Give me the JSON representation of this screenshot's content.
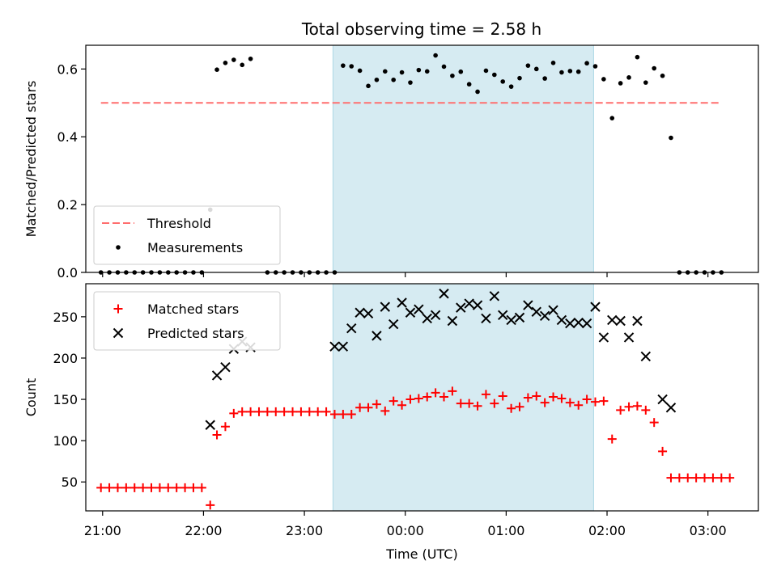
{
  "chart_data": [
    {
      "type": "scatter",
      "title": "Total observing time = 2.58 h",
      "xlabel": "",
      "ylabel": "Matched/Predicted stars",
      "xlim": [
        "20:50",
        "03:30"
      ],
      "ylim": [
        0,
        0.67
      ],
      "yticks": [
        "0.0",
        "0.2",
        "0.4",
        "0.6"
      ],
      "ytick_values": [
        0,
        0.2,
        0.4,
        0.6
      ],
      "shaded_span": [
        "23:17",
        "01:52"
      ],
      "legend_position": "lower-left",
      "threshold": {
        "name": "Threshold",
        "y": 0.5,
        "x_range": [
          "20:59",
          "03:08"
        ],
        "color": "#ff6e6e",
        "style": "dashed"
      },
      "series": [
        {
          "name": "Measurements",
          "color": "#000000",
          "marker": "dot",
          "points": [
            [
              "20:59",
              0
            ],
            [
              "21:04",
              0
            ],
            [
              "21:09",
              0
            ],
            [
              "21:14",
              0
            ],
            [
              "21:19",
              0
            ],
            [
              "21:24",
              0
            ],
            [
              "21:29",
              0
            ],
            [
              "21:34",
              0
            ],
            [
              "21:39",
              0
            ],
            [
              "21:44",
              0
            ],
            [
              "21:49",
              0
            ],
            [
              "21:54",
              0
            ],
            [
              "21:59",
              0
            ],
            [
              "22:04",
              0.185
            ],
            [
              "22:08",
              0.598
            ],
            [
              "22:13",
              0.618
            ],
            [
              "22:18",
              0.627
            ],
            [
              "22:23",
              0.612
            ],
            [
              "22:28",
              0.63
            ],
            [
              "22:38",
              0
            ],
            [
              "22:43",
              0
            ],
            [
              "22:48",
              0
            ],
            [
              "22:53",
              0
            ],
            [
              "22:58",
              0
            ],
            [
              "23:03",
              0
            ],
            [
              "23:08",
              0
            ],
            [
              "23:13",
              0
            ],
            [
              "23:18",
              0
            ],
            [
              "23:23",
              0.61
            ],
            [
              "23:28",
              0.608
            ],
            [
              "23:33",
              0.595
            ],
            [
              "23:38",
              0.55
            ],
            [
              "23:43",
              0.568
            ],
            [
              "23:48",
              0.593
            ],
            [
              "23:53",
              0.568
            ],
            [
              "23:58",
              0.59
            ],
            [
              "00:03",
              0.56
            ],
            [
              "00:08",
              0.597
            ],
            [
              "00:13",
              0.593
            ],
            [
              "00:18",
              0.64
            ],
            [
              "00:23",
              0.607
            ],
            [
              "00:28",
              0.58
            ],
            [
              "00:33",
              0.592
            ],
            [
              "00:38",
              0.555
            ],
            [
              "00:43",
              0.533
            ],
            [
              "00:48",
              0.595
            ],
            [
              "00:53",
              0.583
            ],
            [
              "00:58",
              0.563
            ],
            [
              "01:03",
              0.548
            ],
            [
              "01:08",
              0.573
            ],
            [
              "01:13",
              0.61
            ],
            [
              "01:18",
              0.6
            ],
            [
              "01:23",
              0.572
            ],
            [
              "01:28",
              0.618
            ],
            [
              "01:33",
              0.59
            ],
            [
              "01:38",
              0.594
            ],
            [
              "01:43",
              0.592
            ],
            [
              "01:48",
              0.617
            ],
            [
              "01:53",
              0.608
            ],
            [
              "01:58",
              0.57
            ],
            [
              "02:03",
              0.455
            ],
            [
              "02:08",
              0.558
            ],
            [
              "02:13",
              0.575
            ],
            [
              "02:18",
              0.635
            ],
            [
              "02:23",
              0.56
            ],
            [
              "02:28",
              0.602
            ],
            [
              "02:33",
              0.58
            ],
            [
              "02:38",
              0.397
            ],
            [
              "02:43",
              0
            ],
            [
              "02:48",
              0
            ],
            [
              "02:53",
              0
            ],
            [
              "02:58",
              0
            ],
            [
              "03:03",
              0
            ],
            [
              "03:08",
              0
            ]
          ]
        }
      ]
    },
    {
      "type": "scatter",
      "title": "",
      "xlabel": "Time (UTC)",
      "ylabel": "Count",
      "xlim": [
        "20:50",
        "03:30"
      ],
      "ylim": [
        15,
        290
      ],
      "yticks": [
        "50",
        "100",
        "150",
        "200",
        "250"
      ],
      "ytick_values": [
        50,
        100,
        150,
        200,
        250
      ],
      "xticks": [
        "21:00",
        "22:00",
        "23:00",
        "00:00",
        "01:00",
        "02:00",
        "03:00"
      ],
      "shaded_span": [
        "23:17",
        "01:52"
      ],
      "legend_position": "upper-left",
      "series": [
        {
          "name": "Matched stars",
          "color": "#ff0000",
          "marker": "plus",
          "points": [
            [
              "20:59",
              43
            ],
            [
              "21:04",
              43
            ],
            [
              "21:09",
              43
            ],
            [
              "21:14",
              43
            ],
            [
              "21:19",
              43
            ],
            [
              "21:24",
              43
            ],
            [
              "21:29",
              43
            ],
            [
              "21:34",
              43
            ],
            [
              "21:39",
              43
            ],
            [
              "21:44",
              43
            ],
            [
              "21:49",
              43
            ],
            [
              "21:54",
              43
            ],
            [
              "21:59",
              43
            ],
            [
              "22:04",
              22
            ],
            [
              "22:08",
              107
            ],
            [
              "22:13",
              117
            ],
            [
              "22:18",
              133
            ],
            [
              "22:23",
              135
            ],
            [
              "22:28",
              135
            ],
            [
              "22:33",
              135
            ],
            [
              "22:38",
              135
            ],
            [
              "22:43",
              135
            ],
            [
              "22:48",
              135
            ],
            [
              "22:53",
              135
            ],
            [
              "22:58",
              135
            ],
            [
              "23:03",
              135
            ],
            [
              "23:08",
              135
            ],
            [
              "23:13",
              135
            ],
            [
              "23:18",
              132
            ],
            [
              "23:23",
              132
            ],
            [
              "23:28",
              132
            ],
            [
              "23:33",
              140
            ],
            [
              "23:38",
              140
            ],
            [
              "23:43",
              144
            ],
            [
              "23:48",
              136
            ],
            [
              "23:53",
              148
            ],
            [
              "23:58",
              143
            ],
            [
              "00:03",
              150
            ],
            [
              "00:08",
              151
            ],
            [
              "00:13",
              153
            ],
            [
              "00:18",
              158
            ],
            [
              "00:23",
              153
            ],
            [
              "00:28",
              160
            ],
            [
              "00:33",
              145
            ],
            [
              "00:38",
              145
            ],
            [
              "00:43",
              142
            ],
            [
              "00:48",
              156
            ],
            [
              "00:53",
              145
            ],
            [
              "00:58",
              154
            ],
            [
              "01:03",
              139
            ],
            [
              "01:08",
              141
            ],
            [
              "01:13",
              152
            ],
            [
              "01:18",
              154
            ],
            [
              "01:23",
              146
            ],
            [
              "01:28",
              153
            ],
            [
              "01:33",
              151
            ],
            [
              "01:38",
              146
            ],
            [
              "01:43",
              143
            ],
            [
              "01:48",
              150
            ],
            [
              "01:53",
              147
            ],
            [
              "01:58",
              148
            ],
            [
              "02:03",
              102
            ],
            [
              "02:08",
              137
            ],
            [
              "02:13",
              141
            ],
            [
              "02:18",
              142
            ],
            [
              "02:23",
              137
            ],
            [
              "02:28",
              122
            ],
            [
              "02:33",
              87
            ],
            [
              "02:38",
              55
            ],
            [
              "02:43",
              55
            ],
            [
              "02:48",
              55
            ],
            [
              "02:53",
              55
            ],
            [
              "02:58",
              55
            ],
            [
              "03:03",
              55
            ],
            [
              "03:08",
              55
            ],
            [
              "03:13",
              55
            ]
          ]
        },
        {
          "name": "Predicted stars",
          "color": "#000000",
          "marker": "x",
          "points": [
            [
              "22:04",
              119
            ],
            [
              "22:08",
              179
            ],
            [
              "22:13",
              189
            ],
            [
              "22:18",
              211
            ],
            [
              "22:23",
              220
            ],
            [
              "22:28",
              213
            ],
            [
              "23:18",
              214
            ],
            [
              "23:23",
              214
            ],
            [
              "23:28",
              236
            ],
            [
              "23:33",
              255
            ],
            [
              "23:38",
              254
            ],
            [
              "23:43",
              227
            ],
            [
              "23:48",
              262
            ],
            [
              "23:53",
              241
            ],
            [
              "23:58",
              267
            ],
            [
              "00:03",
              255
            ],
            [
              "00:08",
              259
            ],
            [
              "00:13",
              248
            ],
            [
              "00:18",
              252
            ],
            [
              "00:23",
              278
            ],
            [
              "00:28",
              245
            ],
            [
              "00:33",
              261
            ],
            [
              "00:38",
              266
            ],
            [
              "00:43",
              264
            ],
            [
              "00:48",
              248
            ],
            [
              "00:53",
              275
            ],
            [
              "00:58",
              252
            ],
            [
              "01:03",
              246
            ],
            [
              "01:08",
              249
            ],
            [
              "01:13",
              264
            ],
            [
              "01:18",
              256
            ],
            [
              "01:23",
              251
            ],
            [
              "01:28",
              258
            ],
            [
              "01:33",
              246
            ],
            [
              "01:38",
              242
            ],
            [
              "01:43",
              243
            ],
            [
              "01:48",
              242
            ],
            [
              "01:53",
              262
            ],
            [
              "01:58",
              225
            ],
            [
              "02:03",
              246
            ],
            [
              "02:08",
              245
            ],
            [
              "02:13",
              225
            ],
            [
              "02:18",
              245
            ],
            [
              "02:23",
              202
            ],
            [
              "02:33",
              150
            ],
            [
              "02:38",
              140
            ]
          ]
        }
      ]
    }
  ]
}
